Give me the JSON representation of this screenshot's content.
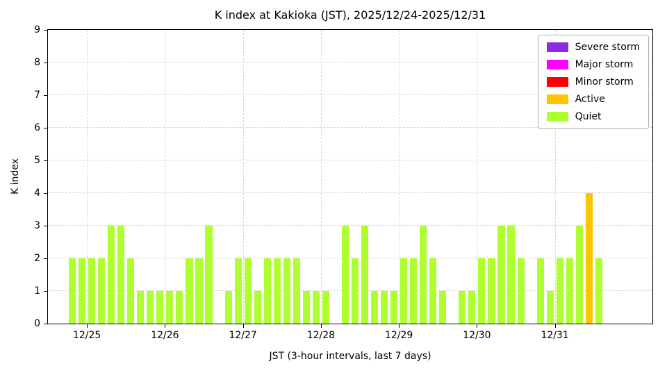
{
  "chart_data": {
    "type": "bar",
    "title": "K index at Kakioka (JST), 2025/12/24-2025/12/31",
    "xlabel": "JST (3-hour intervals, last 7 days)",
    "ylabel": "K index",
    "ylim": [
      0,
      9
    ],
    "yticks": [
      0,
      1,
      2,
      3,
      4,
      5,
      6,
      7,
      8,
      9
    ],
    "grid": true,
    "legend_position": "upper right",
    "legend": [
      {
        "label": "Severe storm",
        "color": "#8a2be2",
        "min_k": 8
      },
      {
        "label": "Major storm",
        "color": "#ff00ff",
        "min_k": 6
      },
      {
        "label": "Minor storm",
        "color": "#ff0000",
        "min_k": 5
      },
      {
        "label": "Active",
        "color": "#ffc400",
        "min_k": 4
      },
      {
        "label": "Quiet",
        "color": "#adff2f",
        "min_k": 0
      }
    ],
    "x_axis": {
      "start": "2025/12/24 12:00",
      "end": "2026/01/01 06:00",
      "total_hours": 186,
      "ticks": [
        {
          "label": "12/25",
          "offset_hours": 12
        },
        {
          "label": "12/26",
          "offset_hours": 36
        },
        {
          "label": "12/27",
          "offset_hours": 60
        },
        {
          "label": "12/28",
          "offset_hours": 84
        },
        {
          "label": "12/29",
          "offset_hours": 108
        },
        {
          "label": "12/30",
          "offset_hours": 132
        },
        {
          "label": "12/31",
          "offset_hours": 156
        }
      ]
    },
    "series": {
      "name": "K index",
      "interval_hours": 3,
      "first_interval_start": "2025/12/24 18:00",
      "first_interval_offset_hours": 6,
      "values": [
        2,
        2,
        2,
        2,
        3,
        3,
        2,
        1,
        1,
        1,
        1,
        1,
        2,
        2,
        3,
        0,
        1,
        2,
        2,
        1,
        2,
        2,
        2,
        2,
        1,
        1,
        1,
        0,
        3,
        2,
        3,
        1,
        1,
        1,
        2,
        2,
        3,
        2,
        1,
        0,
        1,
        1,
        2,
        2,
        3,
        3,
        2,
        0,
        2,
        1,
        2,
        2,
        3,
        4,
        2
      ]
    }
  }
}
